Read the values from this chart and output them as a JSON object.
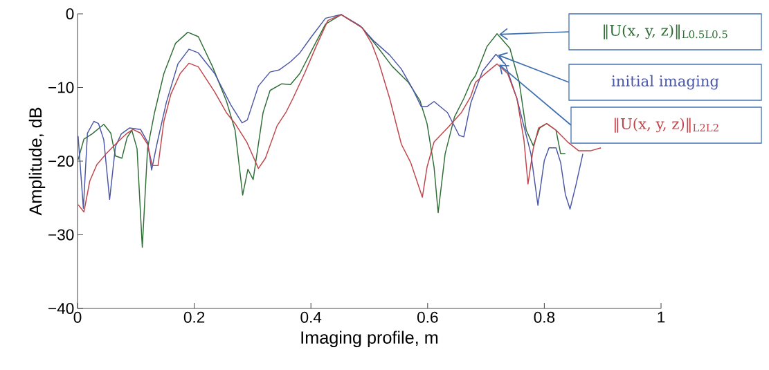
{
  "chart_data": {
    "type": "line",
    "xlabel": "Imaging profile, m",
    "ylabel": "Amplitude, dB",
    "xlim": [
      0,
      1
    ],
    "ylim": [
      -40,
      0
    ],
    "xticks": [
      0,
      0.2,
      0.4,
      0.6,
      0.8,
      1
    ],
    "yticks": [
      {
        "value": -40,
        "label": "−40"
      },
      {
        "value": -30,
        "label": "−30"
      },
      {
        "value": -20,
        "label": "−20"
      },
      {
        "value": -10,
        "label": "−10"
      },
      0
    ],
    "grid": false,
    "marker": "none",
    "line_style": "solid",
    "series": [
      {
        "name": "‖U(x, y, z)‖$_{L0.5L0.5}$",
        "color": "#2f6e36",
        "x": [
          0.001,
          0.011,
          0.025,
          0.045,
          0.057,
          0.065,
          0.076,
          0.085,
          0.093,
          0.102,
          0.111,
          0.12,
          0.132,
          0.148,
          0.168,
          0.189,
          0.207,
          0.231,
          0.255,
          0.27,
          0.283,
          0.292,
          0.301,
          0.318,
          0.33,
          0.35,
          0.365,
          0.381,
          0.405,
          0.425,
          0.452,
          0.488,
          0.516,
          0.539,
          0.567,
          0.587,
          0.599,
          0.611,
          0.618,
          0.63,
          0.646,
          0.662,
          0.674,
          0.682,
          0.702,
          0.719,
          0.741,
          0.757,
          0.769,
          0.781,
          0.792,
          0.804,
          0.82,
          0.828,
          0.836
        ],
        "values": [
          -19.8,
          -17.0,
          -16.3,
          -15.0,
          -16.2,
          -19.3,
          -19.6,
          -16.8,
          -15.8,
          -18.3,
          -31.7,
          -18.3,
          -13.4,
          -8.1,
          -4.0,
          -2.5,
          -3.1,
          -7.1,
          -11.8,
          -15.8,
          -24.6,
          -21.1,
          -22.5,
          -13.4,
          -10.4,
          -9.5,
          -9.6,
          -8.1,
          -4.4,
          -1.4,
          -0.1,
          -1.9,
          -4.7,
          -7.1,
          -9.3,
          -11.8,
          -14.9,
          -20.8,
          -27.0,
          -19.0,
          -14.0,
          -11.5,
          -9.3,
          -8.4,
          -4.4,
          -2.7,
          -4.7,
          -9.3,
          -15.8,
          -17.9,
          -15.5,
          -14.9,
          -15.8,
          -19.0,
          -19.0
        ]
      },
      {
        "name": "initial imaging",
        "color": "#4a56a6",
        "x": [
          0.001,
          0.01,
          0.017,
          0.028,
          0.036,
          0.045,
          0.055,
          0.065,
          0.075,
          0.089,
          0.108,
          0.12,
          0.127,
          0.136,
          0.152,
          0.172,
          0.191,
          0.207,
          0.235,
          0.263,
          0.282,
          0.291,
          0.31,
          0.33,
          0.346,
          0.365,
          0.381,
          0.401,
          0.425,
          0.452,
          0.484,
          0.508,
          0.535,
          0.555,
          0.575,
          0.589,
          0.599,
          0.611,
          0.634,
          0.654,
          0.662,
          0.674,
          0.694,
          0.717,
          0.733,
          0.753,
          0.777,
          0.789,
          0.8,
          0.808,
          0.82,
          0.828,
          0.836,
          0.844,
          0.854,
          0.866
        ],
        "values": [
          -16.6,
          -26.4,
          -16.2,
          -14.6,
          -14.9,
          -17.1,
          -25.2,
          -18.0,
          -16.3,
          -15.5,
          -15.7,
          -17.4,
          -21.2,
          -17.7,
          -12.1,
          -6.8,
          -4.8,
          -5.3,
          -8.1,
          -12.4,
          -14.8,
          -14.4,
          -9.8,
          -7.9,
          -7.6,
          -6.5,
          -5.3,
          -3.1,
          -0.6,
          -0.1,
          -1.6,
          -3.7,
          -5.6,
          -7.5,
          -10.3,
          -12.6,
          -12.6,
          -11.9,
          -13.4,
          -16.5,
          -16.7,
          -12.1,
          -7.8,
          -5.5,
          -6.8,
          -11.5,
          -19.0,
          -26.0,
          -19.9,
          -18.2,
          -18.2,
          -20.2,
          -24.5,
          -26.5,
          -23.3,
          -19.0
        ]
      },
      {
        "name": "‖U(x, y, z)‖$_{L2L2}$",
        "color": "#c0444a",
        "x": [
          0.001,
          0.011,
          0.021,
          0.033,
          0.049,
          0.069,
          0.085,
          0.095,
          0.108,
          0.12,
          0.128,
          0.138,
          0.148,
          0.16,
          0.176,
          0.191,
          0.207,
          0.235,
          0.255,
          0.27,
          0.29,
          0.31,
          0.322,
          0.342,
          0.357,
          0.369,
          0.389,
          0.409,
          0.429,
          0.452,
          0.488,
          0.504,
          0.516,
          0.535,
          0.555,
          0.571,
          0.591,
          0.599,
          0.611,
          0.634,
          0.658,
          0.674,
          0.682,
          0.702,
          0.719,
          0.737,
          0.753,
          0.765,
          0.772,
          0.781,
          0.79,
          0.804,
          0.82,
          0.84,
          0.859,
          0.879,
          0.897
        ],
        "values": [
          -25.9,
          -26.9,
          -22.7,
          -20.5,
          -19.0,
          -17.4,
          -16.2,
          -15.7,
          -16.2,
          -17.7,
          -20.6,
          -20.6,
          -14.6,
          -10.9,
          -8.1,
          -6.7,
          -7.2,
          -10.6,
          -13.4,
          -14.9,
          -17.4,
          -21.0,
          -19.6,
          -15.2,
          -13.4,
          -11.5,
          -8.1,
          -4.4,
          -0.9,
          -0.1,
          -1.9,
          -4.0,
          -6.5,
          -11.5,
          -17.7,
          -20.2,
          -24.9,
          -20.8,
          -17.4,
          -15.5,
          -13.4,
          -11.2,
          -9.3,
          -7.9,
          -6.8,
          -8.1,
          -11.5,
          -17.1,
          -23.1,
          -18.3,
          -15.5,
          -14.9,
          -15.8,
          -17.4,
          -18.6,
          -18.6,
          -18.2
        ]
      }
    ]
  }
}
